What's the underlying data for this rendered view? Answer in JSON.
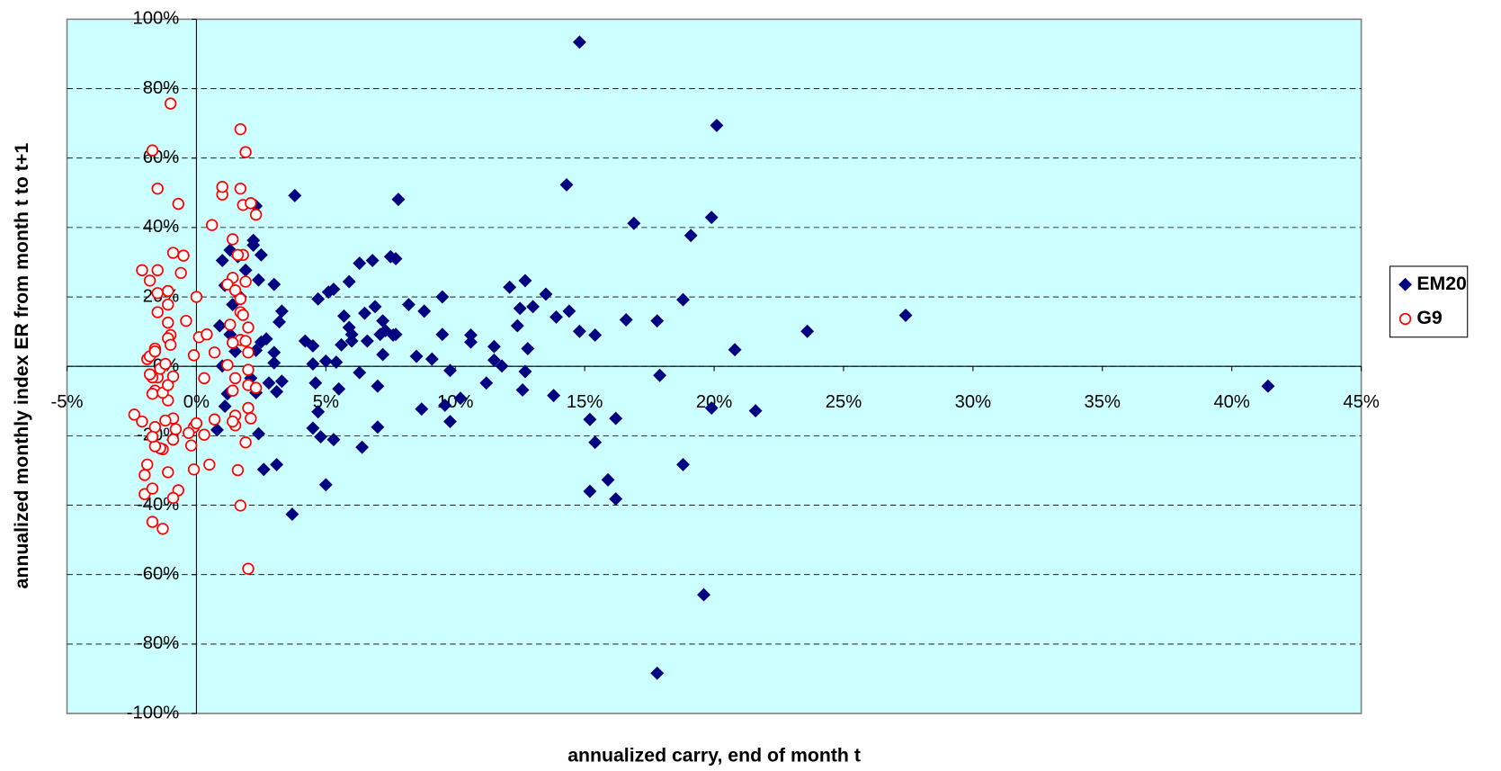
{
  "chart_data": {
    "type": "scatter",
    "xlabel": "annualized carry, end of month t",
    "ylabel": "annualized monthly index ER from month t to t+1",
    "xlim": [
      -5,
      45
    ],
    "ylim": [
      -100,
      100
    ],
    "xticks": [
      {
        "value": -5,
        "label": "-5%"
      },
      {
        "value": 0,
        "label": "0%"
      },
      {
        "value": 5,
        "label": "5%"
      },
      {
        "value": 10,
        "label": "10%"
      },
      {
        "value": 15,
        "label": "15%"
      },
      {
        "value": 20,
        "label": "20%"
      },
      {
        "value": 25,
        "label": "25%"
      },
      {
        "value": 30,
        "label": "30%"
      },
      {
        "value": 35,
        "label": "35%"
      },
      {
        "value": 40,
        "label": "40%"
      },
      {
        "value": 45,
        "label": "45%"
      }
    ],
    "yticks": [
      {
        "value": -100,
        "label": "-100%"
      },
      {
        "value": -80,
        "label": "-80%"
      },
      {
        "value": -60,
        "label": "-60%"
      },
      {
        "value": -40,
        "label": "-40%"
      },
      {
        "value": -20,
        "label": "-20%"
      },
      {
        "value": 0,
        "label": "0%"
      },
      {
        "value": 20,
        "label": "20%"
      },
      {
        "value": 40,
        "label": "40%"
      },
      {
        "value": 60,
        "label": "60%"
      },
      {
        "value": 80,
        "label": "80%"
      },
      {
        "value": 100,
        "label": "100%"
      }
    ],
    "grid": true,
    "legend": "right",
    "background": "#ccffff",
    "series": [
      {
        "name": "EM20",
        "color": "#000080",
        "marker": "diamond",
        "x": [
          14.8,
          20.1,
          19.9,
          19.1,
          16.9,
          14.3,
          7.8,
          3.8,
          27.4,
          23.6,
          20.8,
          18.8,
          17.8,
          16.6,
          15.4,
          14.8,
          14.4,
          13.9,
          13.5,
          13.0,
          12.7,
          12.5,
          12.4,
          12.1,
          12.8,
          12.7,
          12.6,
          13.8,
          10.6,
          10.6,
          9.5,
          9.1,
          8.5,
          8.8,
          8.2,
          9.5,
          11.5,
          11.5,
          11.8,
          11.2,
          10.2,
          9.8,
          9.8,
          9.6,
          8.7,
          17.9,
          19.9,
          21.6,
          15.2,
          15.4,
          16.2,
          18.8,
          15.9,
          15.2,
          16.2,
          19.6,
          17.8,
          41.4,
          7.7,
          7.7,
          7.5,
          6.8,
          6.3,
          6.5,
          6.9,
          7.2,
          7.3,
          7.1,
          7.6,
          7.2,
          6.6,
          6.3,
          7.0,
          6.4,
          7.0,
          5.9,
          5.3,
          5.1,
          4.7,
          5.7,
          5.9,
          6.0,
          6.0,
          5.6,
          5.4,
          5.0,
          4.5,
          4.5,
          4.2,
          4.6,
          5.5,
          4.7,
          4.5,
          4.8,
          5.3,
          5.0,
          3.7,
          3.3,
          3.2,
          3.3,
          3.1,
          3.1,
          3.0,
          3.0,
          3.0,
          2.8,
          2.6,
          2.5,
          2.4,
          2.7,
          2.5,
          2.3,
          2.2,
          2.2,
          2.3,
          2.4,
          2.1,
          2.3,
          1.7,
          1.9,
          1.6,
          1.1,
          1.3,
          1.2,
          1.1,
          1.0,
          0.8,
          0.9,
          1.3,
          1.0,
          1.5,
          1.4
        ],
        "values": [
          93.4,
          69.4,
          42.9,
          37.7,
          41.2,
          52.3,
          48.1,
          49.2,
          14.7,
          10.1,
          4.8,
          19.2,
          13.1,
          13.4,
          9.0,
          10.1,
          15.9,
          14.2,
          20.8,
          17.2,
          24.7,
          16.7,
          11.7,
          22.8,
          5.1,
          -1.5,
          -6.8,
          -8.4,
          7.0,
          9.0,
          9.2,
          2.1,
          2.9,
          15.9,
          17.8,
          20.0,
          5.7,
          1.8,
          0.1,
          -4.8,
          -9.2,
          -1.2,
          -15.9,
          -11.2,
          -12.3,
          -2.6,
          -12.0,
          -12.8,
          -15.3,
          -21.9,
          -15.0,
          -28.3,
          -32.7,
          -36.0,
          -38.2,
          -65.8,
          -88.4,
          -5.7,
          9.2,
          31.0,
          31.6,
          30.5,
          29.7,
          15.3,
          17.2,
          13.1,
          10.3,
          9.2,
          9.0,
          3.4,
          7.3,
          -1.8,
          -5.7,
          -23.3,
          -17.5,
          24.4,
          22.2,
          21.4,
          19.4,
          14.5,
          11.2,
          9.2,
          7.3,
          6.2,
          1.2,
          1.5,
          5.9,
          0.7,
          7.3,
          -4.8,
          -6.5,
          -13.1,
          -17.8,
          -20.3,
          -21.1,
          -34.1,
          -42.6,
          15.9,
          12.8,
          -4.3,
          -28.3,
          -7.3,
          4.0,
          23.6,
          1.0,
          -4.8,
          -29.7,
          32.1,
          24.9,
          7.9,
          7.0,
          4.6,
          34.9,
          36.3,
          46.2,
          -19.4,
          -3.4,
          -7.6,
          20.0,
          27.7,
          31.6,
          23.3,
          9.2,
          -7.9,
          -11.5,
          0.1,
          -18.3,
          11.7,
          33.5,
          30.5,
          4.3,
          17.8
        ]
      },
      {
        "name": "G9",
        "color": "#ff0000",
        "marker": "circle",
        "x": [
          -1.0,
          -1.7,
          -1.5,
          -0.7,
          -0.5,
          -0.9,
          -0.6,
          -1.5,
          -2.1,
          -1.8,
          -1.5,
          -1.1,
          -1.5,
          -1.1,
          -1.1,
          -0.4,
          -1.0,
          0.0,
          0.1,
          0.4,
          -0.1,
          0.3,
          0.7,
          0.6,
          1.0,
          1.0,
          1.7,
          1.9,
          1.7,
          1.8,
          2.1,
          2.3,
          1.4,
          1.8,
          1.6,
          1.4,
          1.2,
          1.5,
          1.9,
          1.7,
          1.7,
          1.8,
          1.3,
          2.0,
          1.7,
          1.9,
          2.0,
          1.4,
          1.2,
          1.5,
          1.4,
          2.0,
          2.3,
          2.0,
          1.5,
          1.5,
          1.4,
          2.1,
          2.0,
          1.9,
          1.6,
          1.7,
          2.0,
          0.7,
          0.3,
          0.5,
          -0.1,
          0.0,
          -0.2,
          -0.1,
          -0.3,
          -0.7,
          -0.9,
          -1.1,
          -1.3,
          -0.9,
          -0.8,
          -0.9,
          -1.2,
          -1.4,
          -1.6,
          -1.6,
          -1.7,
          -1.9,
          -2.0,
          -2.0,
          -1.7,
          -1.7,
          -1.3,
          -2.4,
          -2.1,
          -1.6,
          -1.7,
          -1.1,
          -1.3,
          -1.1,
          -0.9,
          -1.5,
          -1.7,
          -1.8,
          -1.9,
          -1.8,
          -1.6,
          -1.6,
          -1.4,
          -1.2,
          -1.1,
          -1.0
        ],
        "values": [
          75.7,
          62.2,
          51.2,
          46.8,
          31.9,
          32.7,
          26.9,
          27.7,
          27.7,
          24.7,
          21.1,
          21.7,
          15.6,
          17.8,
          12.6,
          13.1,
          9.0,
          20.0,
          8.4,
          9.2,
          3.2,
          -3.4,
          4.0,
          40.7,
          49.5,
          51.7,
          68.3,
          61.7,
          51.2,
          46.5,
          47.0,
          43.7,
          36.6,
          32.1,
          32.1,
          25.5,
          23.6,
          21.9,
          24.4,
          19.4,
          15.6,
          14.8,
          12.0,
          11.2,
          7.6,
          7.3,
          4.0,
          6.8,
          0.4,
          -3.4,
          -7.0,
          -5.4,
          -6.2,
          -1.0,
          -14.2,
          -17.0,
          -15.9,
          -15.0,
          -12.0,
          -21.9,
          -29.9,
          -40.1,
          -58.3,
          -15.3,
          -19.7,
          -28.3,
          -17.5,
          -16.4,
          -22.8,
          -29.7,
          -19.2,
          -35.7,
          -37.9,
          -30.5,
          -23.9,
          -21.1,
          -18.1,
          -15.0,
          -15.6,
          -23.6,
          -23.0,
          -17.5,
          -20.3,
          -28.3,
          -31.3,
          -36.8,
          -35.2,
          -44.8,
          -46.8,
          -13.9,
          -15.9,
          -7.0,
          -7.9,
          -9.8,
          -7.6,
          -5.4,
          -2.9,
          -3.2,
          -3.2,
          -2.3,
          2.1,
          2.9,
          5.1,
          4.3,
          -0.7,
          0.7,
          8.1,
          6.2
        ]
      }
    ]
  }
}
